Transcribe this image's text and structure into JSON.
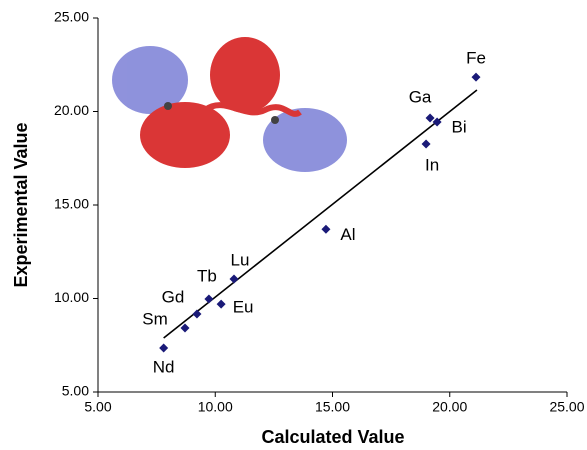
{
  "chart_data": {
    "type": "scatter",
    "x_label": "Calculated Value",
    "y_label": "Experimental Value",
    "labels": [
      "Nd",
      "Sm",
      "Gd",
      "Tb",
      "Eu",
      "Lu",
      "Al",
      "In",
      "Ga",
      "Bi",
      "Fe"
    ],
    "x": [
      7.8,
      8.71,
      9.22,
      9.73,
      10.25,
      10.8,
      14.72,
      18.99,
      19.16,
      19.46,
      21.12
    ],
    "y": [
      7.35,
      8.42,
      9.17,
      9.97,
      9.7,
      11.04,
      13.7,
      18.26,
      19.65,
      19.44,
      21.84
    ],
    "color": "#1a1a78",
    "trendline": {
      "x": [
        7.8,
        21.16
      ],
      "y": [
        7.89,
        21.15
      ],
      "color": "#000000"
    },
    "xlim": [
      5,
      25
    ],
    "ylim": [
      5,
      25
    ],
    "xticks": [
      {
        "value": 5,
        "label": "5.00"
      },
      {
        "value": 10,
        "label": "10.00"
      },
      {
        "value": 15,
        "label": "15.00"
      },
      {
        "value": 20,
        "label": "20.00"
      },
      {
        "value": 25,
        "label": "25.00"
      }
    ],
    "yticks": [
      {
        "value": 5,
        "label": "5.00"
      },
      {
        "value": 10,
        "label": "10.00"
      },
      {
        "value": 15,
        "label": "15.00"
      },
      {
        "value": 20,
        "label": "20.00"
      },
      {
        "value": 25,
        "label": "25.00"
      }
    ],
    "grid": false
  }
}
